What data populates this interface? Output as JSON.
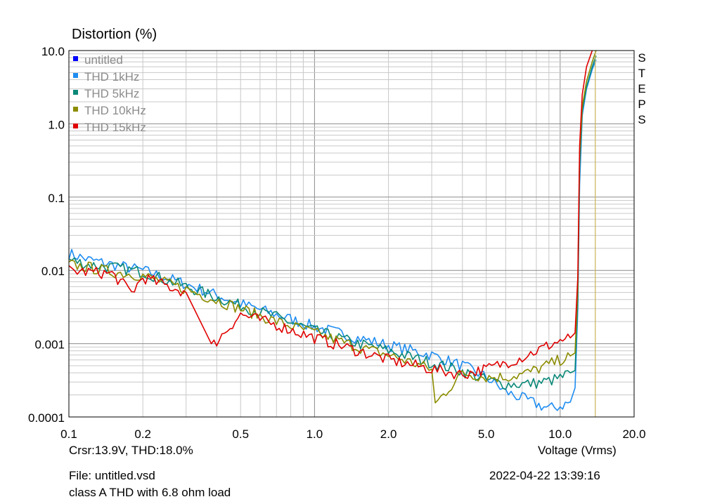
{
  "header": {
    "title": "Distortion (%)"
  },
  "footer": {
    "cursor_readout": "Crsr:13.9V, THD:18.0%",
    "file": "File: untitled.vsd",
    "note": "class A THD with 6.8 ohm load",
    "timestamp": "2022-04-22  13:39:16"
  },
  "side_label": "STEPS",
  "chart_data": {
    "type": "line",
    "xlabel": "Voltage (Vrms)",
    "ylabel": "Distortion (%)",
    "xscale": "log",
    "yscale": "log",
    "xlim": [
      0.1,
      20.0
    ],
    "ylim": [
      0.0001,
      10.0
    ],
    "x_ticks": [
      {
        "value": 0.1,
        "label": "0.1"
      },
      {
        "value": 0.2,
        "label": "0.2"
      },
      {
        "value": 0.5,
        "label": "0.5"
      },
      {
        "value": 1.0,
        "label": "1.0"
      },
      {
        "value": 2.0,
        "label": "2.0"
      },
      {
        "value": 5.0,
        "label": "5.0"
      },
      {
        "value": 10.0,
        "label": "10.0"
      },
      {
        "value": 20.0,
        "label": "20.0"
      }
    ],
    "y_ticks": [
      {
        "value": 0.0001,
        "label": "0.0001"
      },
      {
        "value": 0.001,
        "label": "0.001"
      },
      {
        "value": 0.01,
        "label": "0.01"
      },
      {
        "value": 0.1,
        "label": "0.1"
      },
      {
        "value": 1.0,
        "label": "1.0"
      },
      {
        "value": 10.0,
        "label": "10.0"
      }
    ],
    "grid": true,
    "legend_position": "top-left",
    "cursor_x": 13.9,
    "cursor_color": "#c8b45a",
    "series": [
      {
        "name": "untitled",
        "color": "#0000ff",
        "x": [],
        "y": []
      },
      {
        "name": "THD 1kHz",
        "color": "#1e8cf0",
        "x": [
          0.1,
          0.12,
          0.15,
          0.2,
          0.3,
          0.5,
          0.7,
          1.0,
          1.5,
          2.0,
          3.0,
          4.0,
          5.0,
          6.0,
          7.0,
          8.0,
          9.0,
          10.0,
          11.0,
          11.5,
          11.8,
          12.0,
          12.3,
          12.8,
          13.5,
          14.0
        ],
        "y": [
          0.017,
          0.014,
          0.012,
          0.01,
          0.0065,
          0.0035,
          0.0025,
          0.0017,
          0.0012,
          0.00095,
          0.0007,
          0.0005,
          0.00035,
          0.00022,
          0.00018,
          0.00015,
          0.00013,
          0.00014,
          0.00016,
          0.00025,
          0.003,
          0.15,
          1.3,
          3.0,
          5.5,
          7.5
        ]
      },
      {
        "name": "THD 5kHz",
        "color": "#0a8878",
        "x": [
          0.1,
          0.12,
          0.15,
          0.2,
          0.3,
          0.5,
          0.7,
          1.0,
          1.5,
          2.0,
          3.0,
          4.0,
          5.0,
          6.0,
          7.0,
          8.0,
          9.0,
          10.0,
          11.0,
          11.5,
          11.8,
          12.0,
          12.3,
          12.8,
          13.5,
          14.0
        ],
        "y": [
          0.014,
          0.012,
          0.011,
          0.0095,
          0.006,
          0.0033,
          0.0023,
          0.0015,
          0.001,
          0.0008,
          0.00055,
          0.00042,
          0.00032,
          0.00028,
          0.00028,
          0.00029,
          0.00031,
          0.00034,
          0.0004,
          0.00043,
          0.004,
          0.25,
          1.5,
          3.2,
          6.0,
          8.5
        ]
      },
      {
        "name": "THD 10kHz",
        "color": "#8c8c00",
        "x": [
          0.1,
          0.12,
          0.15,
          0.2,
          0.3,
          0.5,
          0.7,
          1.0,
          1.5,
          2.0,
          3.0,
          3.1,
          4.0,
          5.0,
          6.0,
          7.0,
          8.0,
          9.0,
          10.0,
          11.0,
          11.5,
          11.8,
          12.0,
          12.3,
          12.8,
          13.5,
          14.0
        ],
        "y": [
          0.012,
          0.011,
          0.0095,
          0.0085,
          0.0055,
          0.003,
          0.002,
          0.0014,
          0.0009,
          0.0007,
          0.00045,
          0.00015,
          0.0004,
          0.00035,
          0.00035,
          0.00038,
          0.00044,
          0.00052,
          0.0006,
          0.00068,
          0.00075,
          0.006,
          0.4,
          1.7,
          3.8,
          7.0,
          10.0
        ]
      },
      {
        "name": "THD 15kHz",
        "color": "#e00000",
        "x": [
          0.1,
          0.12,
          0.15,
          0.18,
          0.2,
          0.3,
          0.38,
          0.5,
          0.7,
          1.0,
          1.5,
          2.0,
          3.0,
          4.0,
          5.0,
          6.0,
          7.0,
          8.0,
          9.0,
          10.0,
          11.0,
          11.5,
          11.8,
          12.0,
          12.3,
          12.8,
          13.5
        ],
        "y": [
          0.01,
          0.0095,
          0.009,
          0.005,
          0.008,
          0.005,
          0.0009,
          0.0025,
          0.0018,
          0.0012,
          0.0008,
          0.0006,
          0.00045,
          0.00038,
          0.00045,
          0.00055,
          0.00065,
          0.0008,
          0.00095,
          0.0011,
          0.0012,
          0.0014,
          0.008,
          0.5,
          2.5,
          6.0,
          10.0
        ]
      }
    ]
  }
}
